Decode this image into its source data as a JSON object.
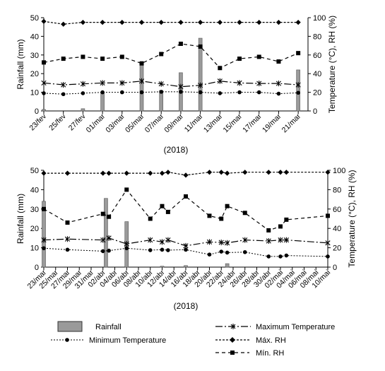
{
  "chart_data": [
    {
      "type": "bar+line",
      "title": "",
      "xlabel": "(2018)",
      "ylabel_left": "Rainfall (mm)",
      "ylabel_right": "Temperature (°C), RH (%)",
      "ylim_left": [
        0,
        50
      ],
      "ylim_right": [
        0,
        100
      ],
      "yticks_left": [
        "0",
        "10",
        "20",
        "30",
        "40",
        "50"
      ],
      "yticks_right": [
        "0",
        "20",
        "40",
        "60",
        "80",
        "100"
      ],
      "xlim": [
        0,
        27
      ],
      "x_ticks": [
        {
          "x": 0,
          "label": "23/fev"
        },
        {
          "x": 2,
          "label": "25/fev"
        },
        {
          "x": 4,
          "label": "27/fev"
        },
        {
          "x": 6,
          "label": "01/mar"
        },
        {
          "x": 8,
          "label": "03/mar"
        },
        {
          "x": 10,
          "label": "05/mar"
        },
        {
          "x": 12,
          "label": "07/mar"
        },
        {
          "x": 14,
          "label": "09/mar"
        },
        {
          "x": 16,
          "label": "11/mar"
        },
        {
          "x": 18,
          "label": "13/mar"
        },
        {
          "x": 20,
          "label": "15/mar"
        },
        {
          "x": 22,
          "label": "17/mar"
        },
        {
          "x": 24,
          "label": "19/mar"
        },
        {
          "x": 26,
          "label": "21/mar"
        }
      ],
      "rainfall": [
        {
          "x": 0,
          "y": 0.8
        },
        {
          "x": 4,
          "y": 1.2
        },
        {
          "x": 6,
          "y": 10
        },
        {
          "x": 10,
          "y": 25
        },
        {
          "x": 12,
          "y": 11
        },
        {
          "x": 14,
          "y": 20.5
        },
        {
          "x": 16,
          "y": 39
        },
        {
          "x": 26,
          "y": 22
        }
      ],
      "series": [
        {
          "name": "Máx. RH",
          "key": "max_rh",
          "points": [
            {
              "x": 0,
              "y": 96
            },
            {
              "x": 2,
              "y": 93
            },
            {
              "x": 4,
              "y": 95
            },
            {
              "x": 6,
              "y": 95
            },
            {
              "x": 8,
              "y": 95
            },
            {
              "x": 10,
              "y": 95
            },
            {
              "x": 12,
              "y": 95
            },
            {
              "x": 14,
              "y": 95
            },
            {
              "x": 16,
              "y": 95
            },
            {
              "x": 18,
              "y": 95
            },
            {
              "x": 20,
              "y": 95
            },
            {
              "x": 22,
              "y": 95
            },
            {
              "x": 24,
              "y": 95
            },
            {
              "x": 26,
              "y": 95
            }
          ]
        },
        {
          "name": "Mín. RH",
          "key": "min_rh",
          "points": [
            {
              "x": 0,
              "y": 52
            },
            {
              "x": 2,
              "y": 56
            },
            {
              "x": 4,
              "y": 58
            },
            {
              "x": 6,
              "y": 56
            },
            {
              "x": 8,
              "y": 58
            },
            {
              "x": 10,
              "y": 51
            },
            {
              "x": 12,
              "y": 61
            },
            {
              "x": 14,
              "y": 72
            },
            {
              "x": 16,
              "y": 69
            },
            {
              "x": 18,
              "y": 46
            },
            {
              "x": 20,
              "y": 56
            },
            {
              "x": 22,
              "y": 58
            },
            {
              "x": 24,
              "y": 53
            },
            {
              "x": 26,
              "y": 62
            }
          ]
        },
        {
          "name": "Maximum Temperature",
          "key": "max_temp",
          "points": [
            {
              "x": 0,
              "y": 30
            },
            {
              "x": 2,
              "y": 28
            },
            {
              "x": 4,
              "y": 29
            },
            {
              "x": 6,
              "y": 30
            },
            {
              "x": 8,
              "y": 30
            },
            {
              "x": 10,
              "y": 32
            },
            {
              "x": 12,
              "y": 29
            },
            {
              "x": 14,
              "y": 26
            },
            {
              "x": 16,
              "y": 27.5
            },
            {
              "x": 18,
              "y": 32
            },
            {
              "x": 20,
              "y": 30
            },
            {
              "x": 22,
              "y": 29.5
            },
            {
              "x": 24,
              "y": 29.5
            },
            {
              "x": 26,
              "y": 28
            }
          ]
        },
        {
          "name": "Minimum Temperature",
          "key": "min_temp",
          "points": [
            {
              "x": 0,
              "y": 19
            },
            {
              "x": 2,
              "y": 18
            },
            {
              "x": 4,
              "y": 19
            },
            {
              "x": 6,
              "y": 20
            },
            {
              "x": 8,
              "y": 20
            },
            {
              "x": 10,
              "y": 20
            },
            {
              "x": 12,
              "y": 20.5
            },
            {
              "x": 14,
              "y": 20.5
            },
            {
              "x": 16,
              "y": 20
            },
            {
              "x": 18,
              "y": 19
            },
            {
              "x": 20,
              "y": 20
            },
            {
              "x": 22,
              "y": 20
            },
            {
              "x": 24,
              "y": 18.5
            },
            {
              "x": 26,
              "y": 19.5
            }
          ]
        }
      ]
    },
    {
      "type": "bar+line",
      "title": "",
      "xlabel": "(2018)",
      "ylabel_left": "Rainfall (mm)",
      "ylabel_right": "Temperature (°C), RH (%)",
      "ylim_left": [
        0,
        50
      ],
      "ylim_right": [
        0,
        100
      ],
      "yticks_left": [
        "0",
        "10",
        "20",
        "30",
        "40",
        "50"
      ],
      "yticks_right": [
        "0",
        "20",
        "40",
        "60",
        "80",
        "100"
      ],
      "xlim": [
        0,
        48
      ],
      "x_ticks": [
        {
          "x": 0,
          "label": "23/mar"
        },
        {
          "x": 2,
          "label": "25/mar"
        },
        {
          "x": 4,
          "label": "27/mar"
        },
        {
          "x": 6,
          "label": "29/mar"
        },
        {
          "x": 8,
          "label": "31/mar"
        },
        {
          "x": 10,
          "label": "02/abr"
        },
        {
          "x": 12,
          "label": "04/abr"
        },
        {
          "x": 14,
          "label": "06/abr"
        },
        {
          "x": 16,
          "label": "08/abr"
        },
        {
          "x": 18,
          "label": "10/abr"
        },
        {
          "x": 20,
          "label": "12/abr"
        },
        {
          "x": 22,
          "label": "14/abr"
        },
        {
          "x": 24,
          "label": "16/abr"
        },
        {
          "x": 26,
          "label": "18/abr"
        },
        {
          "x": 28,
          "label": "20/abr"
        },
        {
          "x": 30,
          "label": "22/abr"
        },
        {
          "x": 32,
          "label": "24/abr"
        },
        {
          "x": 34,
          "label": "26/abr"
        },
        {
          "x": 36,
          "label": "28/abr"
        },
        {
          "x": 38,
          "label": "30/abr"
        },
        {
          "x": 40,
          "label": "02/mai"
        },
        {
          "x": 42,
          "label": "04/mai"
        },
        {
          "x": 44,
          "label": "06/mai"
        },
        {
          "x": 46,
          "label": "08/mai"
        },
        {
          "x": 48,
          "label": "10/mai"
        }
      ],
      "rainfall": [
        {
          "x": 0,
          "y": 34
        },
        {
          "x": 10.5,
          "y": 35.5
        },
        {
          "x": 14,
          "y": 23.5
        },
        {
          "x": 20,
          "y": 0.5
        },
        {
          "x": 24,
          "y": 0.8
        },
        {
          "x": 31,
          "y": 1.8
        }
      ],
      "series": [
        {
          "name": "Máx. RH",
          "key": "max_rh",
          "points": [
            {
              "x": 0,
              "y": 97
            },
            {
              "x": 4,
              "y": 97
            },
            {
              "x": 10,
              "y": 97
            },
            {
              "x": 11,
              "y": 97
            },
            {
              "x": 14,
              "y": 97
            },
            {
              "x": 18,
              "y": 97
            },
            {
              "x": 20,
              "y": 97
            },
            {
              "x": 21,
              "y": 98
            },
            {
              "x": 24,
              "y": 95
            },
            {
              "x": 28,
              "y": 98
            },
            {
              "x": 30,
              "y": 98
            },
            {
              "x": 31,
              "y": 97
            },
            {
              "x": 34,
              "y": 98
            },
            {
              "x": 38,
              "y": 98
            },
            {
              "x": 40,
              "y": 98
            },
            {
              "x": 41,
              "y": 98
            },
            {
              "x": 48,
              "y": 98
            }
          ]
        },
        {
          "name": "Mín. RH",
          "key": "min_rh",
          "points": [
            {
              "x": 0,
              "y": 60
            },
            {
              "x": 4,
              "y": 46
            },
            {
              "x": 10,
              "y": 55
            },
            {
              "x": 11,
              "y": 52
            },
            {
              "x": 14,
              "y": 80
            },
            {
              "x": 18,
              "y": 50
            },
            {
              "x": 20,
              "y": 63
            },
            {
              "x": 21,
              "y": 57
            },
            {
              "x": 24,
              "y": 73
            },
            {
              "x": 28,
              "y": 53
            },
            {
              "x": 30,
              "y": 50
            },
            {
              "x": 31,
              "y": 63
            },
            {
              "x": 34,
              "y": 56
            },
            {
              "x": 38,
              "y": 38
            },
            {
              "x": 40,
              "y": 42
            },
            {
              "x": 41,
              "y": 49
            },
            {
              "x": 48,
              "y": 53
            }
          ]
        },
        {
          "name": "Maximum Temperature",
          "key": "max_temp",
          "points": [
            {
              "x": 0,
              "y": 28
            },
            {
              "x": 4,
              "y": 29
            },
            {
              "x": 10,
              "y": 28
            },
            {
              "x": 11,
              "y": 30
            },
            {
              "x": 14,
              "y": 24
            },
            {
              "x": 18,
              "y": 28
            },
            {
              "x": 20,
              "y": 26
            },
            {
              "x": 21,
              "y": 28
            },
            {
              "x": 24,
              "y": 22
            },
            {
              "x": 28,
              "y": 26
            },
            {
              "x": 30,
              "y": 25.5
            },
            {
              "x": 31,
              "y": 25
            },
            {
              "x": 34,
              "y": 28
            },
            {
              "x": 38,
              "y": 27
            },
            {
              "x": 40,
              "y": 28
            },
            {
              "x": 41,
              "y": 28
            },
            {
              "x": 48,
              "y": 25
            }
          ]
        },
        {
          "name": "Minimum Temperature",
          "key": "min_temp",
          "points": [
            {
              "x": 0,
              "y": 19.5
            },
            {
              "x": 4,
              "y": 18
            },
            {
              "x": 10,
              "y": 16.5
            },
            {
              "x": 11,
              "y": 17
            },
            {
              "x": 14,
              "y": 19.5
            },
            {
              "x": 18,
              "y": 17.5
            },
            {
              "x": 20,
              "y": 18
            },
            {
              "x": 21,
              "y": 17.5
            },
            {
              "x": 24,
              "y": 18
            },
            {
              "x": 28,
              "y": 13
            },
            {
              "x": 30,
              "y": 16
            },
            {
              "x": 31,
              "y": 15
            },
            {
              "x": 34,
              "y": 15.5
            },
            {
              "x": 38,
              "y": 11
            },
            {
              "x": 40,
              "y": 11
            },
            {
              "x": 41,
              "y": 12
            },
            {
              "x": 48,
              "y": 11
            }
          ]
        }
      ]
    }
  ],
  "legend": {
    "items": [
      {
        "key": "rainfall",
        "label": "Rainfall"
      },
      {
        "key": "max_temp",
        "label": "Maximum Temperature"
      },
      {
        "key": "min_temp",
        "label": "Minimum Temperature"
      },
      {
        "key": "max_rh",
        "label": "Máx. RH"
      },
      {
        "key": "min_rh",
        "label": "Mín. RH"
      }
    ]
  }
}
